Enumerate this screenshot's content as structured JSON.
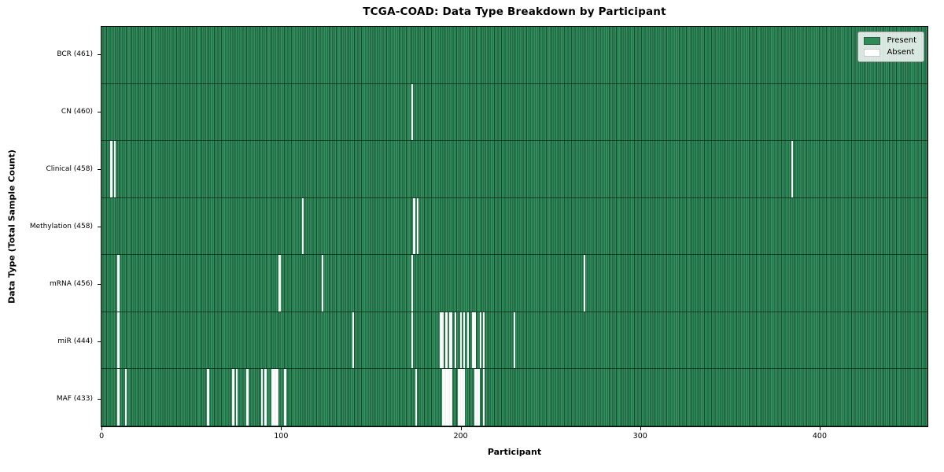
{
  "title": "TCGA-COAD: Data Type Breakdown by Participant",
  "x_axis": {
    "label": "Participant",
    "ticks": [
      0,
      100,
      200,
      300,
      400
    ]
  },
  "y_axis": {
    "label": "Data Type (Total Sample Count)"
  },
  "legend": {
    "items": [
      {
        "label": "Present",
        "color": "#2e8b57",
        "border": "#2a5c40"
      },
      {
        "label": "Absent",
        "color": "#ffffff",
        "border": "#c9c9c9"
      }
    ]
  },
  "chart_data": {
    "type": "heatmap",
    "title": "TCGA-COAD: Data Type Breakdown by Participant",
    "xlabel": "Participant",
    "ylabel": "Data Type (Total Sample Count)",
    "x_range": [
      0,
      461
    ],
    "n_participants": 461,
    "cell_states": [
      "Present",
      "Absent"
    ],
    "colors": {
      "present": "#2e8b57",
      "absent": "#ffffff",
      "bar_edge": "#1c4a2f"
    },
    "rows": [
      {
        "label": "BCR (461)",
        "name": "BCR",
        "present_count": 461,
        "absent_participants": []
      },
      {
        "label": "CN (460)",
        "name": "CN",
        "present_count": 460,
        "absent_participants": [
          173
        ]
      },
      {
        "label": "Clinical (458)",
        "name": "Clinical",
        "present_count": 458,
        "absent_participants": [
          5,
          7,
          385
        ]
      },
      {
        "label": "Methylation (458)",
        "name": "Methylation",
        "present_count": 458,
        "absent_participants": [
          112,
          174,
          176
        ]
      },
      {
        "label": "mRNA (456)",
        "name": "mRNA",
        "present_count": 456,
        "absent_participants": [
          9,
          99,
          123,
          173,
          269
        ]
      },
      {
        "label": "miR (444)",
        "name": "miR",
        "present_count": 444,
        "absent_participants": [
          9,
          140,
          173,
          189,
          190,
          192,
          194,
          195,
          197,
          200,
          202,
          204,
          207,
          208,
          211,
          213,
          230
        ]
      },
      {
        "label": "MAF (433)",
        "name": "MAF",
        "present_count": 433,
        "absent_participants": [
          9,
          13,
          59,
          73,
          75,
          81,
          89,
          91,
          95,
          96,
          97,
          98,
          102,
          175,
          190,
          191,
          192,
          193,
          194,
          195,
          199,
          200,
          201,
          202,
          208,
          209,
          210,
          213
        ]
      }
    ]
  }
}
